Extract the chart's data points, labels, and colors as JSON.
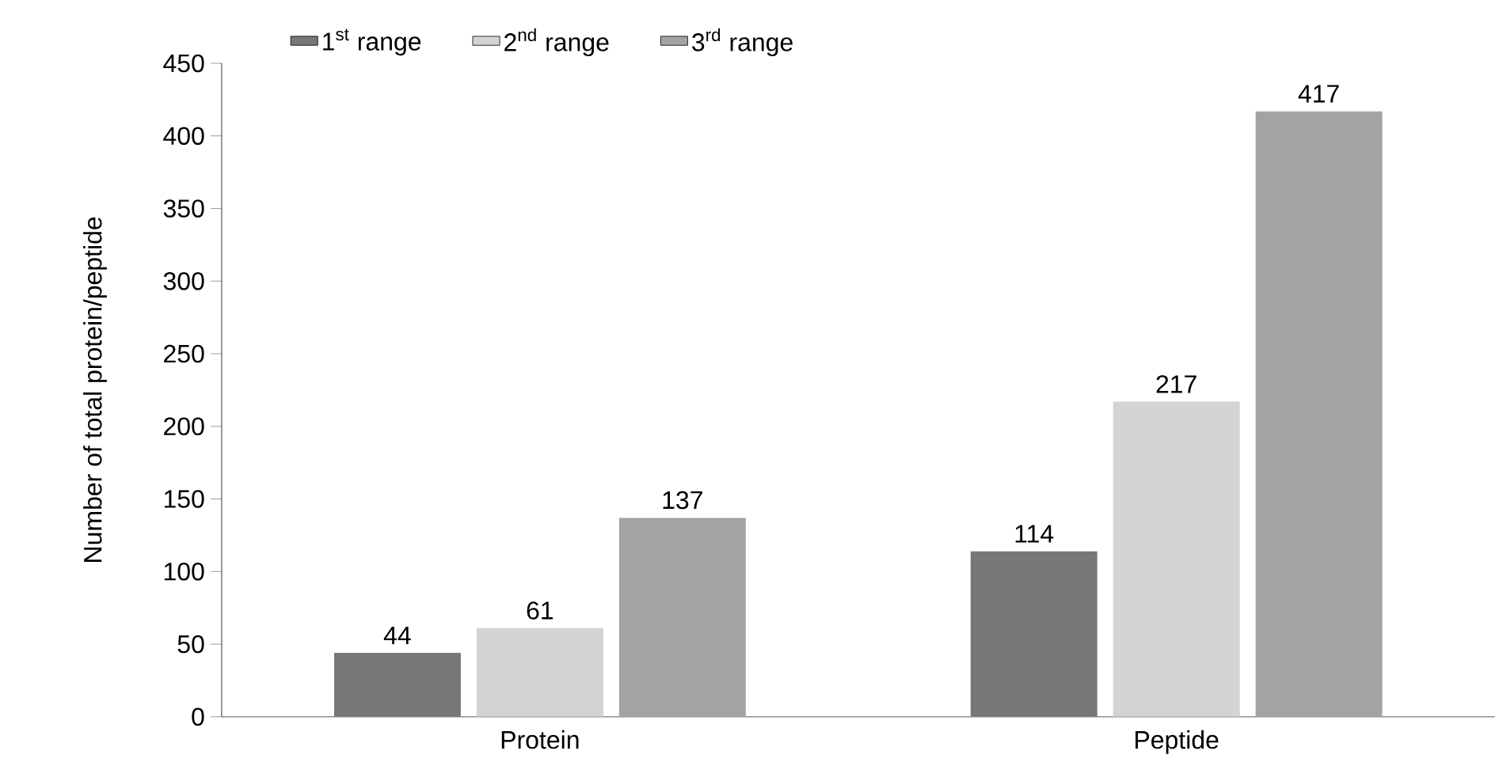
{
  "chart_data": {
    "type": "bar",
    "ylabel": "Number of total protein/peptide",
    "categories": [
      "Protein",
      "Peptide"
    ],
    "series": [
      {
        "name": "1$^{st}$ range",
        "color": "#77777a",
        "values": [
          44,
          114
        ]
      },
      {
        "name": "2$^{nd}$ range",
        "color": "#d3d3d3",
        "values": [
          61,
          217
        ]
      },
      {
        "name": "3$^{rd}$ range",
        "color": "#a3a3a3",
        "values": [
          137,
          417
        ]
      }
    ],
    "ylim": [
      0,
      450
    ],
    "yticks": [
      0,
      50,
      100,
      150,
      200,
      250,
      300,
      350,
      400,
      450
    ],
    "data_labels": true,
    "legend": "top"
  }
}
